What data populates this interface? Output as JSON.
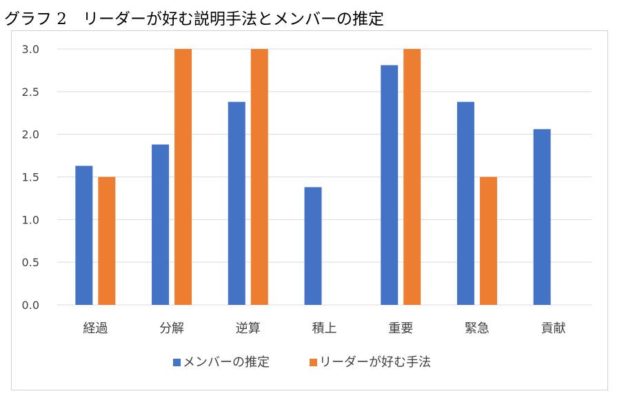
{
  "title": "グラフ 2　リーダーが好む説明手法とメンバーの推定",
  "colors": {
    "series_0": "#4472C4",
    "series_1": "#ED7D31",
    "grid": "#d9d9d9"
  },
  "chart_data": {
    "type": "bar",
    "title": "グラフ 2　リーダーが好む説明手法とメンバーの推定",
    "categories": [
      "経過",
      "分解",
      "逆算",
      "積上",
      "重要",
      "緊急",
      "貢献"
    ],
    "series": [
      {
        "name": "メンバーの推定",
        "values": [
          1.63,
          1.88,
          2.38,
          1.38,
          2.81,
          2.38,
          2.06
        ]
      },
      {
        "name": "リーダーが好む手法",
        "values": [
          1.5,
          3.0,
          3.0,
          0,
          3.0,
          1.5,
          0
        ]
      }
    ],
    "yticks": [
      "0.0",
      "0.5",
      "1.0",
      "1.5",
      "2.0",
      "2.5",
      "3.0"
    ],
    "ylim": [
      0,
      3.0
    ],
    "xlabel": "",
    "ylabel": "",
    "grid": true,
    "legend": "bottom"
  }
}
